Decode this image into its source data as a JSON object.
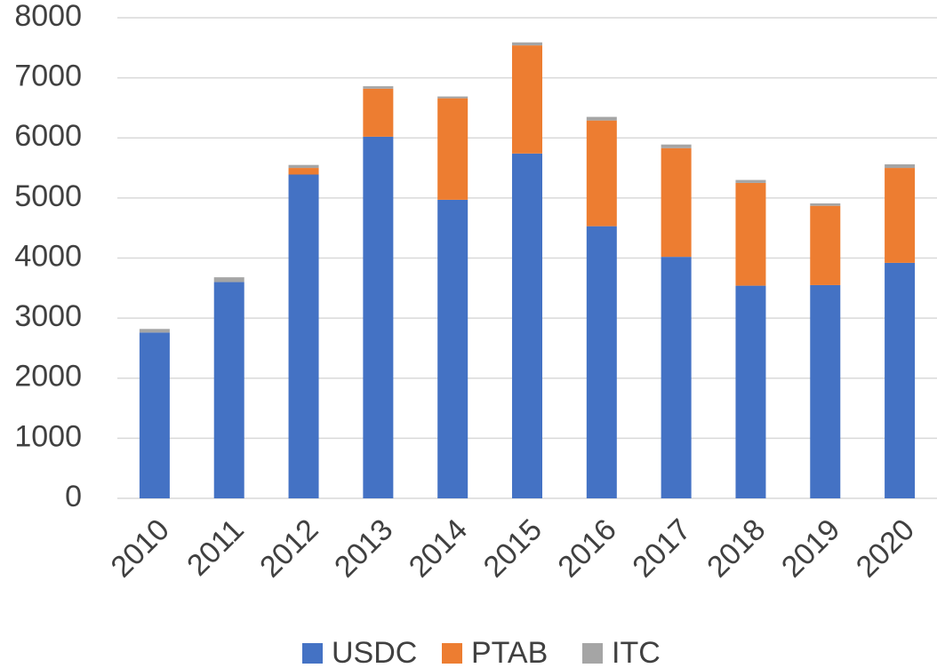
{
  "chart_data": {
    "type": "stacked_bar",
    "categories": [
      "2010",
      "2011",
      "2012",
      "2013",
      "2014",
      "2015",
      "2016",
      "2017",
      "2018",
      "2019",
      "2020"
    ],
    "series": [
      {
        "name": "USDC",
        "color": "#4472c4",
        "values": [
          2760,
          3600,
          5390,
          6020,
          4970,
          5740,
          4530,
          4020,
          3540,
          3550,
          3920
        ]
      },
      {
        "name": "PTAB",
        "color": "#ed7d31",
        "values": [
          0,
          0,
          110,
          800,
          1690,
          1800,
          1760,
          1810,
          1710,
          1320,
          1580
        ]
      },
      {
        "name": "ITC",
        "color": "#a5a5a5",
        "values": [
          60,
          80,
          50,
          40,
          30,
          50,
          60,
          60,
          50,
          40,
          60
        ]
      }
    ],
    "ylim": [
      0,
      8000
    ],
    "yticks": [
      0,
      1000,
      2000,
      3000,
      4000,
      5000,
      6000,
      7000,
      8000
    ],
    "grid": true,
    "legend": "bottom"
  }
}
